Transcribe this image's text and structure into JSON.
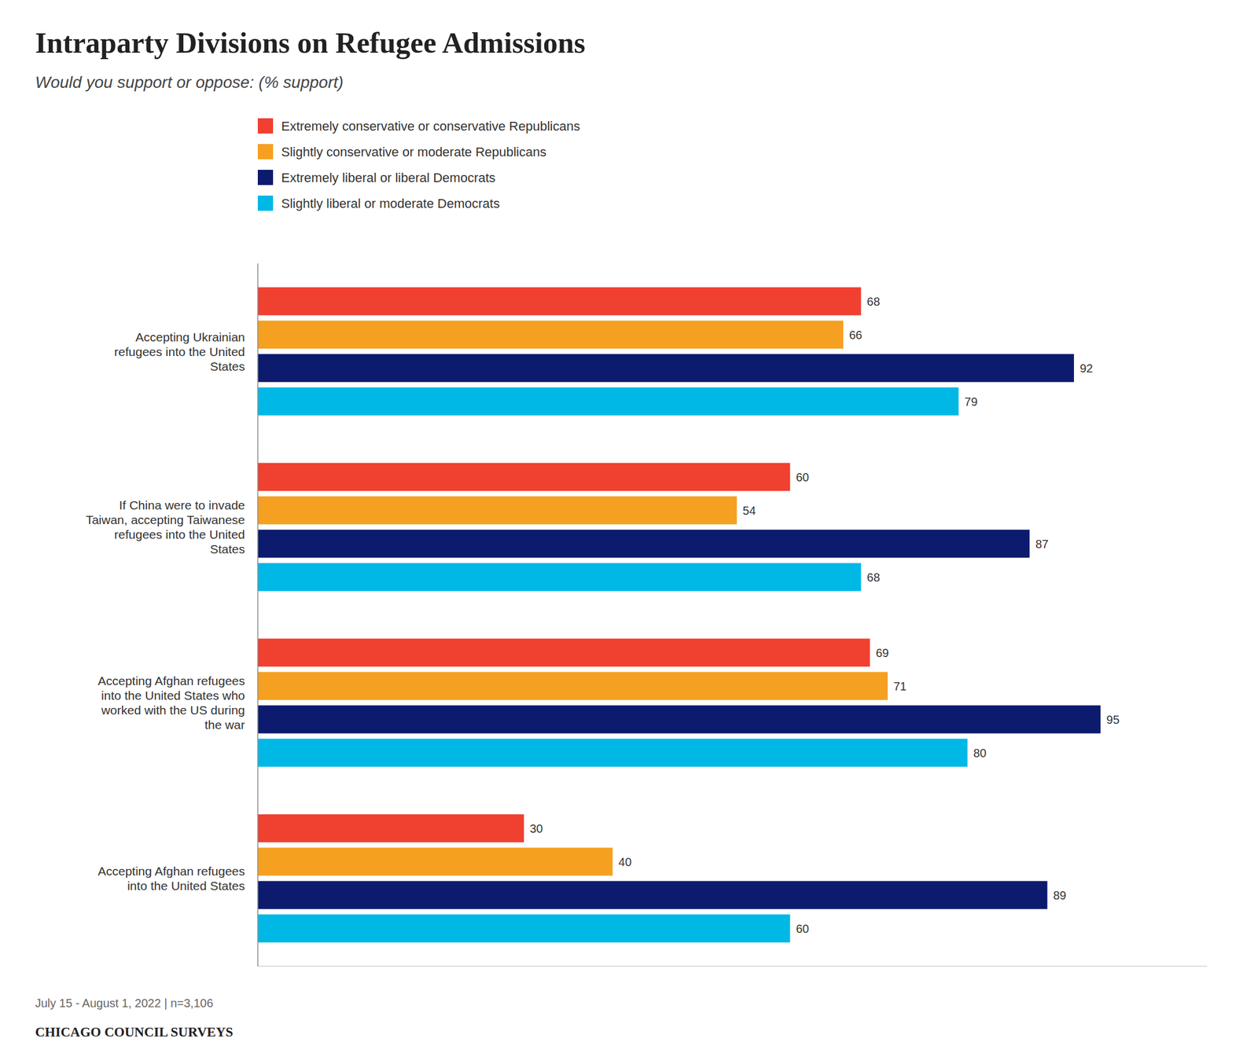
{
  "chart_data": {
    "type": "bar",
    "orientation": "horizontal",
    "title": "Intraparty Divisions on Refugee Admissions",
    "subtitle": "Would you support or oppose: (% support)",
    "categories": [
      "Accepting Ukrainian\nrefugees into the United\nStates",
      "If China were to invade\nTaiwan, accepting Taiwanese\nrefugees into the United\nStates",
      "Accepting Afghan refugees\ninto the United States who\nworked with the US during\nthe war",
      "Accepting Afghan refugees\ninto the United States"
    ],
    "series": [
      {
        "name": "Extremely conservative or conservative Republicans",
        "color": "#f04030",
        "values": [
          68,
          60,
          69,
          30
        ]
      },
      {
        "name": "Slightly conservative or moderate Republicans",
        "color": "#f5a020",
        "values": [
          66,
          54,
          71,
          40
        ]
      },
      {
        "name": "Extremely liberal or liberal Democrats",
        "color": "#0d1b6e",
        "values": [
          92,
          87,
          95,
          89
        ]
      },
      {
        "name": "Slightly liberal or moderate Democrats",
        "color": "#00b8e6",
        "values": [
          79,
          68,
          80,
          60
        ]
      }
    ],
    "xlim": [
      0,
      107
    ],
    "grid": false,
    "legend": "top",
    "data_labels": true,
    "tick_labels": "y",
    "annotations": [
      "July 15 - August 1, 2022 | n=3,106",
      "CHICAGO COUNCIL SURVEYS"
    ]
  }
}
